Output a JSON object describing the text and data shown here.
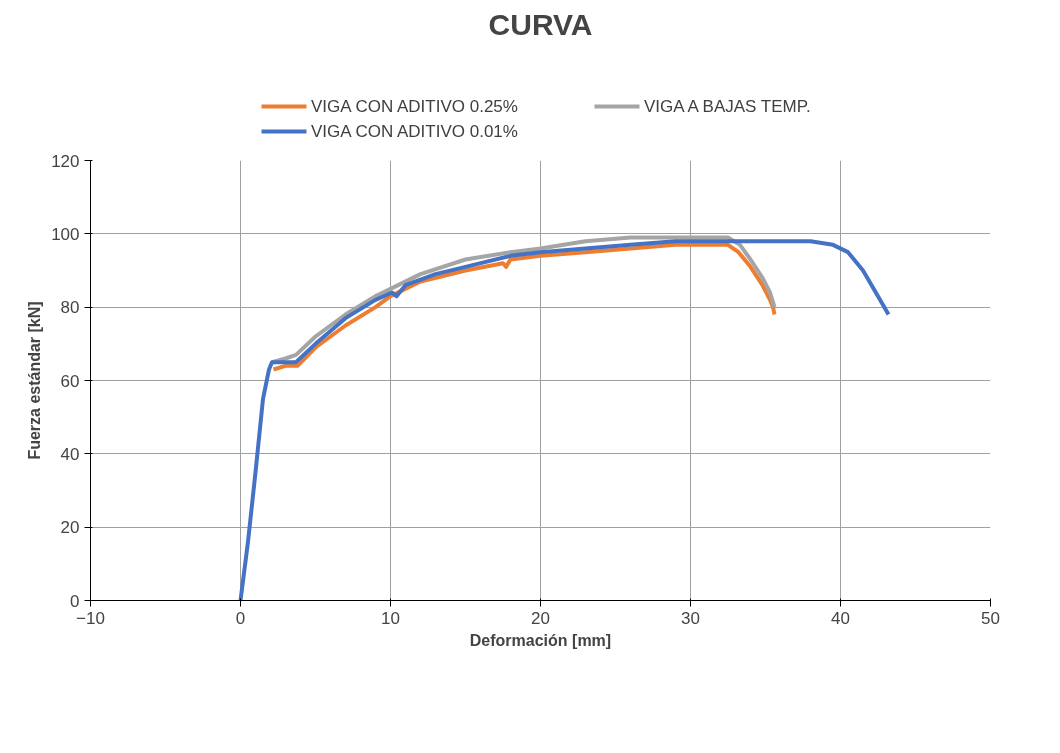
{
  "chart_data": {
    "type": "line",
    "title": "CURVA",
    "xlabel": "Deformación [mm]",
    "ylabel": "Fuerza estándar [kN]",
    "xlim": [
      -10,
      50
    ],
    "ylim": [
      0,
      120
    ],
    "xticks": [
      -10,
      0,
      10,
      20,
      30,
      40,
      50
    ],
    "yticks": [
      0,
      20,
      40,
      60,
      80,
      100,
      120
    ],
    "grid": true,
    "legend": "top",
    "marker": "none",
    "line_style": "solid",
    "series": [
      {
        "name": "VIGA CON ADITIVO 0.25%",
        "color": "#ed7d31",
        "x": [
          2.2,
          3,
          3.5,
          3.8,
          5,
          7,
          9,
          10,
          12,
          15,
          17.5,
          17.7,
          18,
          20,
          23,
          26,
          29,
          31,
          32.5,
          33.2,
          34,
          34.8,
          35.3,
          35.5,
          35.6
        ],
        "values": [
          63,
          64,
          64,
          64,
          69,
          75,
          80,
          83,
          87,
          90,
          92,
          91,
          93,
          94,
          95,
          96,
          97,
          97,
          97,
          95,
          91,
          86,
          82,
          80,
          78
        ]
      },
      {
        "name": "VIGA A BAJAS TEMP.",
        "color": "#a5a5a5",
        "x": [
          2.1,
          3,
          3.7,
          5,
          7,
          9,
          9.5,
          10,
          12,
          15,
          18,
          20,
          23,
          26,
          29,
          31,
          32.5,
          33.3,
          34,
          34.8,
          35.3,
          35.6
        ],
        "values": [
          65,
          66,
          67,
          72,
          78,
          83,
          84,
          85,
          89,
          93,
          95,
          96,
          98,
          99,
          99,
          99,
          99,
          97,
          93,
          88,
          84,
          80
        ]
      },
      {
        "name": "VIGA CON ADITIVO 0.01%",
        "color": "#4472c4",
        "x": [
          0,
          0.5,
          1,
          1.5,
          1.9,
          2.1,
          3,
          3.7,
          5,
          7,
          9,
          10.1,
          10.4,
          11,
          13,
          15,
          18,
          20,
          23,
          26,
          29,
          32,
          35,
          38,
          39.5,
          40.5,
          41.5,
          42.5,
          43.2
        ],
        "values": [
          0,
          16,
          35,
          55,
          63,
          65,
          65,
          65,
          70,
          77,
          82,
          84,
          83,
          86,
          89,
          91,
          94,
          95,
          96,
          97,
          98,
          98,
          98,
          98,
          97,
          95,
          90,
          83,
          78
        ]
      }
    ]
  }
}
